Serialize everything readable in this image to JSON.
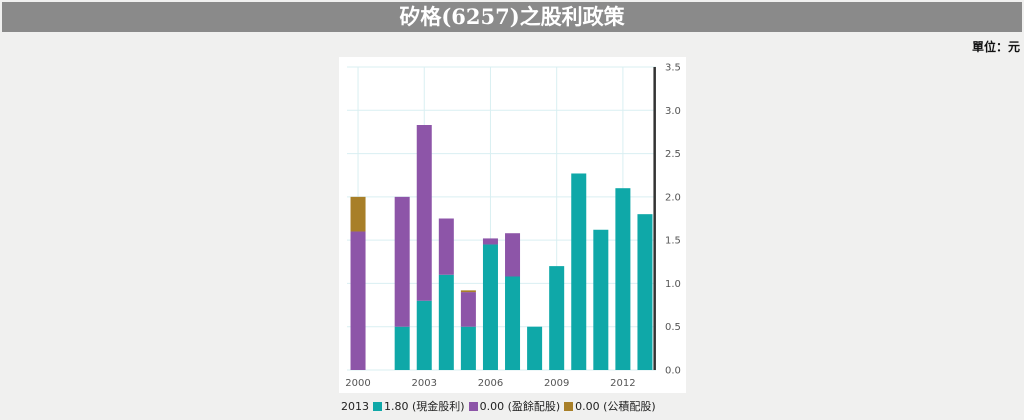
{
  "header": {
    "title": "矽格(6257)之股利政策"
  },
  "unit_label": "單位：元",
  "colors": {
    "cash": "#0fa8a8",
    "retained": "#8d55a8",
    "capital": "#a87f28",
    "cursor": "#333333",
    "grid": "#d9eff2"
  },
  "legend": {
    "year": "2013",
    "items": [
      {
        "name": "cash",
        "text": "1.80 (現金股利)"
      },
      {
        "name": "retained",
        "text": "0.00 (盈餘配股)"
      },
      {
        "name": "capital",
        "text": "0.00 (公積配股)"
      }
    ]
  },
  "chart_data": {
    "type": "bar",
    "stacked": true,
    "title": "矽格(6257)之股利政策",
    "xlabel": "",
    "ylabel": "單位：元",
    "ylim": [
      0,
      3.5
    ],
    "y_ticks": [
      "0.0",
      "0.5",
      "1.0",
      "1.5",
      "2.0",
      "2.5",
      "3.0",
      "3.5"
    ],
    "categories": [
      "2000",
      "2001",
      "2002",
      "2003",
      "2004",
      "2005",
      "2006",
      "2007",
      "2008",
      "2009",
      "2010",
      "2011",
      "2012",
      "2013"
    ],
    "x_tick_labels": [
      "2000",
      "2003",
      "2006",
      "2009",
      "2012"
    ],
    "series": [
      {
        "name": "現金股利",
        "values": [
          0,
          0,
          0.5,
          0.8,
          1.1,
          0.5,
          1.45,
          1.08,
          0.5,
          1.2,
          2.27,
          1.62,
          2.1,
          1.8
        ]
      },
      {
        "name": "盈餘配股",
        "values": [
          1.6,
          0,
          1.5,
          2.03,
          0.65,
          0.4,
          0.07,
          0.5,
          0,
          0,
          0,
          0,
          0,
          0
        ]
      },
      {
        "name": "公積配股",
        "values": [
          0.4,
          0,
          0,
          0,
          0,
          0.02,
          0,
          0,
          0,
          0,
          0,
          0,
          0,
          0
        ]
      }
    ],
    "highlight_category": "2013"
  }
}
